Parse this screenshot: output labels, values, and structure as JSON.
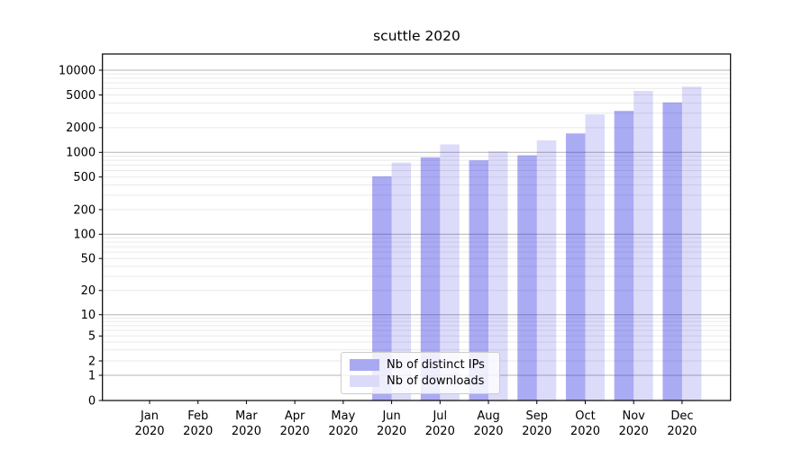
{
  "chart_data": {
    "type": "bar",
    "title": "scuttle 2020",
    "categories": [
      "Jan 2020",
      "Feb 2020",
      "Mar 2020",
      "Apr 2020",
      "May 2020",
      "Jun 2020",
      "Jul 2020",
      "Aug 2020",
      "Sep 2020",
      "Oct 2020",
      "Nov 2020",
      "Dec 2020"
    ],
    "series": [
      {
        "name": "Nb of distinct IPs",
        "color": "#2323e1",
        "alpha": 0.38,
        "legend_color": "#a9a9f2",
        "values": [
          0,
          0,
          0,
          0,
          0,
          510,
          870,
          800,
          920,
          1700,
          3200,
          4050
        ]
      },
      {
        "name": "Nb of downloads",
        "color": "#2323e1",
        "alpha": 0.16,
        "legend_color": "#dbdbf9",
        "values": [
          0,
          0,
          0,
          0,
          0,
          750,
          1250,
          1030,
          1400,
          2900,
          5600,
          6300
        ]
      }
    ],
    "yscale": "symlog",
    "yticks": [
      0,
      1,
      2,
      5,
      10,
      20,
      50,
      100,
      200,
      500,
      1000,
      2000,
      5000,
      10000
    ],
    "ylim": [
      0,
      14500
    ],
    "xlabel": "",
    "ylabel": "",
    "grid": "both",
    "legend_position": "lower center"
  },
  "colors": {
    "background": "#ffffff",
    "axis": "#000000",
    "text": "#000000",
    "grid_major": "#b3b3b3",
    "grid_minor": "#e9e9e9"
  }
}
